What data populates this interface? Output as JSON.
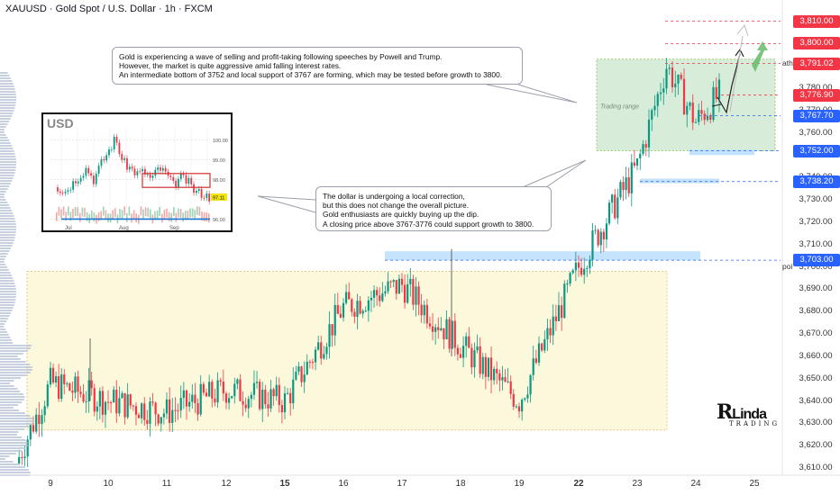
{
  "header": {
    "title": "XAUUSD · Gold Spot / U.S. Dollar · 1h · FXCM"
  },
  "chart_data": [
    {
      "type": "candlestick",
      "title": "XAUUSD · Gold Spot / U.S. Dollar · 1h · FXCM",
      "x_ticks": [
        "9",
        "10",
        "11",
        "12",
        "15",
        "16",
        "17",
        "18",
        "19",
        "22",
        "23",
        "24",
        "25"
      ],
      "x_ticks_bold": [
        "15",
        "22"
      ],
      "y_ticks": [
        "3,610.00",
        "3,620.00",
        "3,630.00",
        "3,640.00",
        "3,650.00",
        "3,660.00",
        "3,670.00",
        "3,680.00",
        "3,690.00",
        "3,700.00",
        "3,710.00",
        "3,720.00",
        "3,730.00",
        "3,740.00",
        "3,750.00",
        "3,760.00",
        "3,770.00",
        "3,780.00"
      ],
      "ylim": [
        3605,
        3815
      ],
      "price_labels": [
        {
          "value": "3,810.00",
          "color": "#f23645"
        },
        {
          "value": "3,800.00",
          "color": "#f23645"
        },
        {
          "value": "3,791.02",
          "color": "#f23645"
        },
        {
          "value": "3,776.90",
          "color": "#f23645"
        },
        {
          "value": "3,767.70",
          "color": "#2962ff"
        },
        {
          "value": "3,752.00",
          "color": "#2962ff"
        },
        {
          "value": "3,738.20",
          "color": "#2962ff"
        },
        {
          "value": "3,703.00",
          "color": "#2962ff"
        }
      ],
      "level_tags": {
        "ath": "ath",
        "poi": "poi"
      },
      "zones": {
        "trading_range_label": "Trading range",
        "trading_range": [
          3752,
          3793
        ]
      },
      "price_path_approx": [
        {
          "day": "8",
          "close": 3612
        },
        {
          "day": "9",
          "close": 3648
        },
        {
          "day": "10",
          "close": 3640
        },
        {
          "day": "11",
          "close": 3635
        },
        {
          "day": "12",
          "close": 3645
        },
        {
          "day": "15",
          "close": 3640
        },
        {
          "day": "16",
          "close": 3682
        },
        {
          "day": "17",
          "close": 3692
        },
        {
          "day": "18",
          "close": 3665
        },
        {
          "day": "19",
          "close": 3640
        },
        {
          "day": "22",
          "close": 3700
        },
        {
          "day": "23",
          "close": 3745
        },
        {
          "day": "23.5",
          "close": 3790
        },
        {
          "day": "24",
          "close": 3765
        },
        {
          "day": "24.4",
          "close": 3777
        }
      ],
      "colors": {
        "up": "#089981",
        "down": "#f23645",
        "zone_green": "#c8e6c9",
        "zone_yellow": "#fbf8dc",
        "level_blue": "#bbdefb"
      }
    },
    {
      "type": "candlestick",
      "title": "USD",
      "x_ticks": [
        "Jul",
        "Aug",
        "Sep"
      ],
      "y_ticks": [
        "100.00",
        "99.00",
        "98.00",
        "97.11",
        "96.00"
      ],
      "last_price": "97.11"
    }
  ],
  "callouts": {
    "gold": [
      "Gold is experiencing a wave of selling and profit-taking following speeches by Powell and Trump.",
      "However, the market is quite aggressive amid falling interest rates.",
      "An intermediate bottom of 3752 and local support of 3767 are forming, which may be tested before growth to 3800."
    ],
    "dollar": [
      "The dollar is undergoing a local correction,",
      "but this does not change the overall picture.",
      "Gold enthusiasts are quickly buying up the dip.",
      "A closing price above 3767-3776 could support growth to 3800."
    ]
  },
  "logo": {
    "main": "RLinda",
    "sub": "TRADING"
  }
}
